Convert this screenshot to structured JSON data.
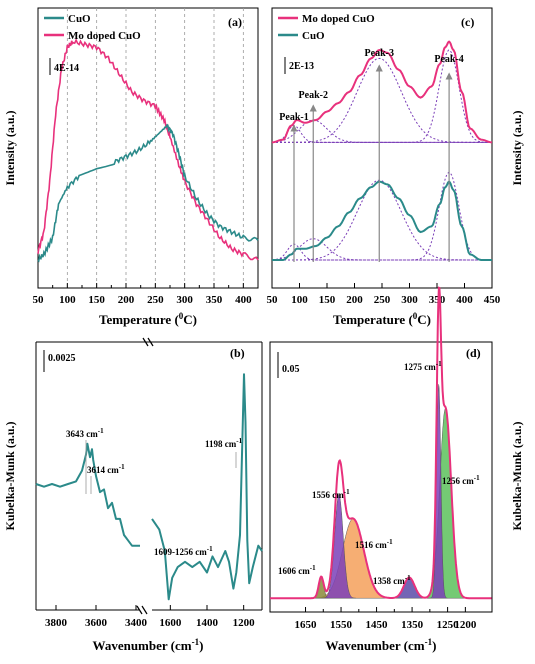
{
  "colors": {
    "cuo": "#2b8a8a",
    "mo": "#e8317c",
    "fit": "#7b3fb8"
  },
  "chart_data": [
    {
      "id": "a",
      "type": "line",
      "panel_label": "(a)",
      "xlabel": "Temperature (",
      "xlabel_deg": "0",
      "xlabel_tail": "C)",
      "ylabel": "Intensity (a.u.)",
      "xlim": [
        50,
        425
      ],
      "xticks": [
        "50",
        "100",
        "150",
        "200",
        "250",
        "300",
        "350",
        "400"
      ],
      "scalebar": "4E-14",
      "legend": [
        {
          "name": "CuO",
          "color": "#2b8a8a"
        },
        {
          "name": "Mo doped CuO",
          "color": "#e8317c"
        }
      ],
      "legend_placement": "top-left",
      "grid_vlines": [
        100,
        150,
        200,
        250,
        300,
        350,
        400
      ],
      "series": [
        {
          "name": "CuO",
          "x": [
            50,
            60,
            75,
            85,
            100,
            120,
            150,
            180,
            200,
            220,
            240,
            255,
            270,
            280,
            290,
            300,
            320,
            340,
            360,
            380,
            400,
            425
          ],
          "y": [
            0.1,
            0.12,
            0.18,
            0.3,
            0.36,
            0.4,
            0.43,
            0.45,
            0.47,
            0.49,
            0.52,
            0.55,
            0.58,
            0.55,
            0.48,
            0.4,
            0.32,
            0.26,
            0.22,
            0.2,
            0.18,
            0.17
          ]
        },
        {
          "name": "Mo doped CuO",
          "x": [
            50,
            60,
            70,
            80,
            90,
            100,
            110,
            130,
            150,
            170,
            190,
            210,
            230,
            250,
            265,
            275,
            290,
            300,
            320,
            340,
            360,
            380,
            400,
            425
          ],
          "y": [
            0.13,
            0.2,
            0.38,
            0.62,
            0.78,
            0.86,
            0.88,
            0.87,
            0.86,
            0.82,
            0.76,
            0.7,
            0.67,
            0.65,
            0.6,
            0.54,
            0.44,
            0.38,
            0.3,
            0.24,
            0.18,
            0.14,
            0.12,
            0.1
          ]
        }
      ]
    },
    {
      "id": "c",
      "type": "line",
      "panel_label": "(c)",
      "xlabel": "Temperature (",
      "xlabel_deg": "0",
      "xlabel_tail": "C)",
      "ylabel": "Intensity (a.u.)",
      "xlim": [
        50,
        450
      ],
      "xticks": [
        "50",
        "100",
        "150",
        "200",
        "250",
        "300",
        "350",
        "400",
        "450"
      ],
      "scalebar": "2E-13",
      "legend": [
        {
          "name": "Mo doped CuO",
          "color": "#e8317c"
        },
        {
          "name": "CuO",
          "color": "#2b8a8a"
        }
      ],
      "legend_placement": "top-left",
      "peaks": [
        {
          "label": "Peak-1",
          "x": 90
        },
        {
          "label": "Peak-2",
          "x": 125
        },
        {
          "label": "Peak-3",
          "x": 245
        },
        {
          "label": "Peak-4",
          "x": 372
        }
      ],
      "series": [
        {
          "name": "Mo doped CuO",
          "x": [
            50,
            70,
            85,
            95,
            110,
            130,
            150,
            170,
            190,
            210,
            230,
            245,
            260,
            280,
            300,
            320,
            340,
            355,
            365,
            372,
            380,
            395,
            410,
            430,
            450
          ],
          "y": [
            0.52,
            0.53,
            0.58,
            0.6,
            0.59,
            0.6,
            0.63,
            0.66,
            0.7,
            0.76,
            0.82,
            0.85,
            0.84,
            0.78,
            0.72,
            0.68,
            0.72,
            0.8,
            0.86,
            0.88,
            0.85,
            0.7,
            0.57,
            0.53,
            0.52
          ]
        },
        {
          "name": "CuO",
          "x": [
            50,
            70,
            85,
            95,
            110,
            130,
            150,
            170,
            190,
            210,
            230,
            245,
            260,
            280,
            300,
            320,
            340,
            355,
            365,
            372,
            380,
            395,
            410,
            430,
            450
          ],
          "y": [
            0.1,
            0.1,
            0.12,
            0.14,
            0.14,
            0.15,
            0.18,
            0.22,
            0.27,
            0.32,
            0.36,
            0.38,
            0.37,
            0.32,
            0.26,
            0.2,
            0.22,
            0.3,
            0.36,
            0.38,
            0.35,
            0.22,
            0.12,
            0.1,
            0.1
          ]
        }
      ]
    },
    {
      "id": "b",
      "type": "line",
      "panel_label": "(b)",
      "xlabel": "Wavenumber (cm",
      "xlabel_sup": "-1",
      "xlabel_tail": ")",
      "ylabel": "Kubelka-Munk (a.u.)",
      "xticks_left": [
        "3800",
        "3600",
        "3400"
      ],
      "xticks_right": [
        "1600",
        "1400",
        "1200"
      ],
      "scalebar": "0.0025",
      "annotations": [
        {
          "text": "3643 cm",
          "sup": "-1"
        },
        {
          "text": "3614 cm",
          "sup": "-1"
        },
        {
          "text": "1198 cm",
          "sup": "-1"
        },
        {
          "text": "1609-1256 cm",
          "sup": "-1"
        }
      ],
      "series": [
        {
          "name": "left",
          "x": [
            3900,
            3860,
            3820,
            3780,
            3740,
            3700,
            3670,
            3650,
            3643,
            3630,
            3620,
            3614,
            3600,
            3580,
            3560,
            3540,
            3520,
            3500,
            3480,
            3460,
            3440,
            3420,
            3400,
            3380
          ],
          "y": [
            0.47,
            0.46,
            0.47,
            0.46,
            0.47,
            0.48,
            0.52,
            0.58,
            0.62,
            0.57,
            0.6,
            0.56,
            0.5,
            0.44,
            0.45,
            0.38,
            0.4,
            0.34,
            0.34,
            0.28,
            0.26,
            0.24,
            0.24,
            0.24
          ]
        },
        {
          "name": "right",
          "x": [
            1700,
            1660,
            1630,
            1609,
            1590,
            1560,
            1520,
            1480,
            1440,
            1400,
            1370,
            1340,
            1300,
            1280,
            1256,
            1240,
            1220,
            1205,
            1198,
            1190,
            1180,
            1170,
            1150,
            1120,
            1100
          ],
          "y": [
            0.34,
            0.3,
            0.22,
            0.04,
            0.12,
            0.16,
            0.18,
            0.16,
            0.18,
            0.14,
            0.2,
            0.16,
            0.22,
            0.18,
            0.08,
            0.14,
            0.28,
            0.7,
            0.88,
            0.7,
            0.26,
            0.1,
            0.16,
            0.24,
            0.22
          ]
        }
      ]
    },
    {
      "id": "d",
      "type": "area",
      "panel_label": "(d)",
      "xlabel": "Wavenumber (cm",
      "xlabel_sup": "-1",
      "xlabel_tail": ")",
      "ylabel": "Kubelka-Munk (a.u.)",
      "xlim": [
        1750,
        1125
      ],
      "xticks": [
        "1650",
        "1600",
        "1550",
        "1500",
        "1450",
        "1400",
        "1350",
        "1300",
        "1250",
        "1200"
      ],
      "xticks_labeled": [
        "1650",
        "1550",
        "1450",
        "1350",
        "1250",
        "1200"
      ],
      "scalebar": "0.05",
      "annotations": [
        {
          "text": "1275 cm",
          "sup": "-1",
          "x": 1275
        },
        {
          "text": "1256 cm",
          "sup": "-1",
          "x": 1256
        },
        {
          "text": "1556 cm",
          "sup": "-1",
          "x": 1556
        },
        {
          "text": "1516 cm",
          "sup": "-1",
          "x": 1516
        },
        {
          "text": "1606 cm",
          "sup": "-1",
          "x": 1606
        },
        {
          "text": "1358 cm",
          "sup": "-1",
          "x": 1358
        }
      ],
      "components": [
        {
          "center": 1606,
          "amp": 0.06,
          "width": 7,
          "color": "#8a8a3a"
        },
        {
          "center": 1556,
          "amp": 0.3,
          "width": 12,
          "color": "#7b3fb8"
        },
        {
          "center": 1516,
          "amp": 0.23,
          "width": 30,
          "color": "#f5a05a"
        },
        {
          "center": 1358,
          "amp": 0.06,
          "width": 15,
          "color": "#5b4aa8"
        },
        {
          "center": 1275,
          "amp": 0.62,
          "width": 6,
          "color": "#7b3fb8"
        },
        {
          "center": 1256,
          "amp": 0.55,
          "width": 16,
          "color": "#5cc15c"
        }
      ],
      "envelope_color": "#e8317c"
    }
  ]
}
